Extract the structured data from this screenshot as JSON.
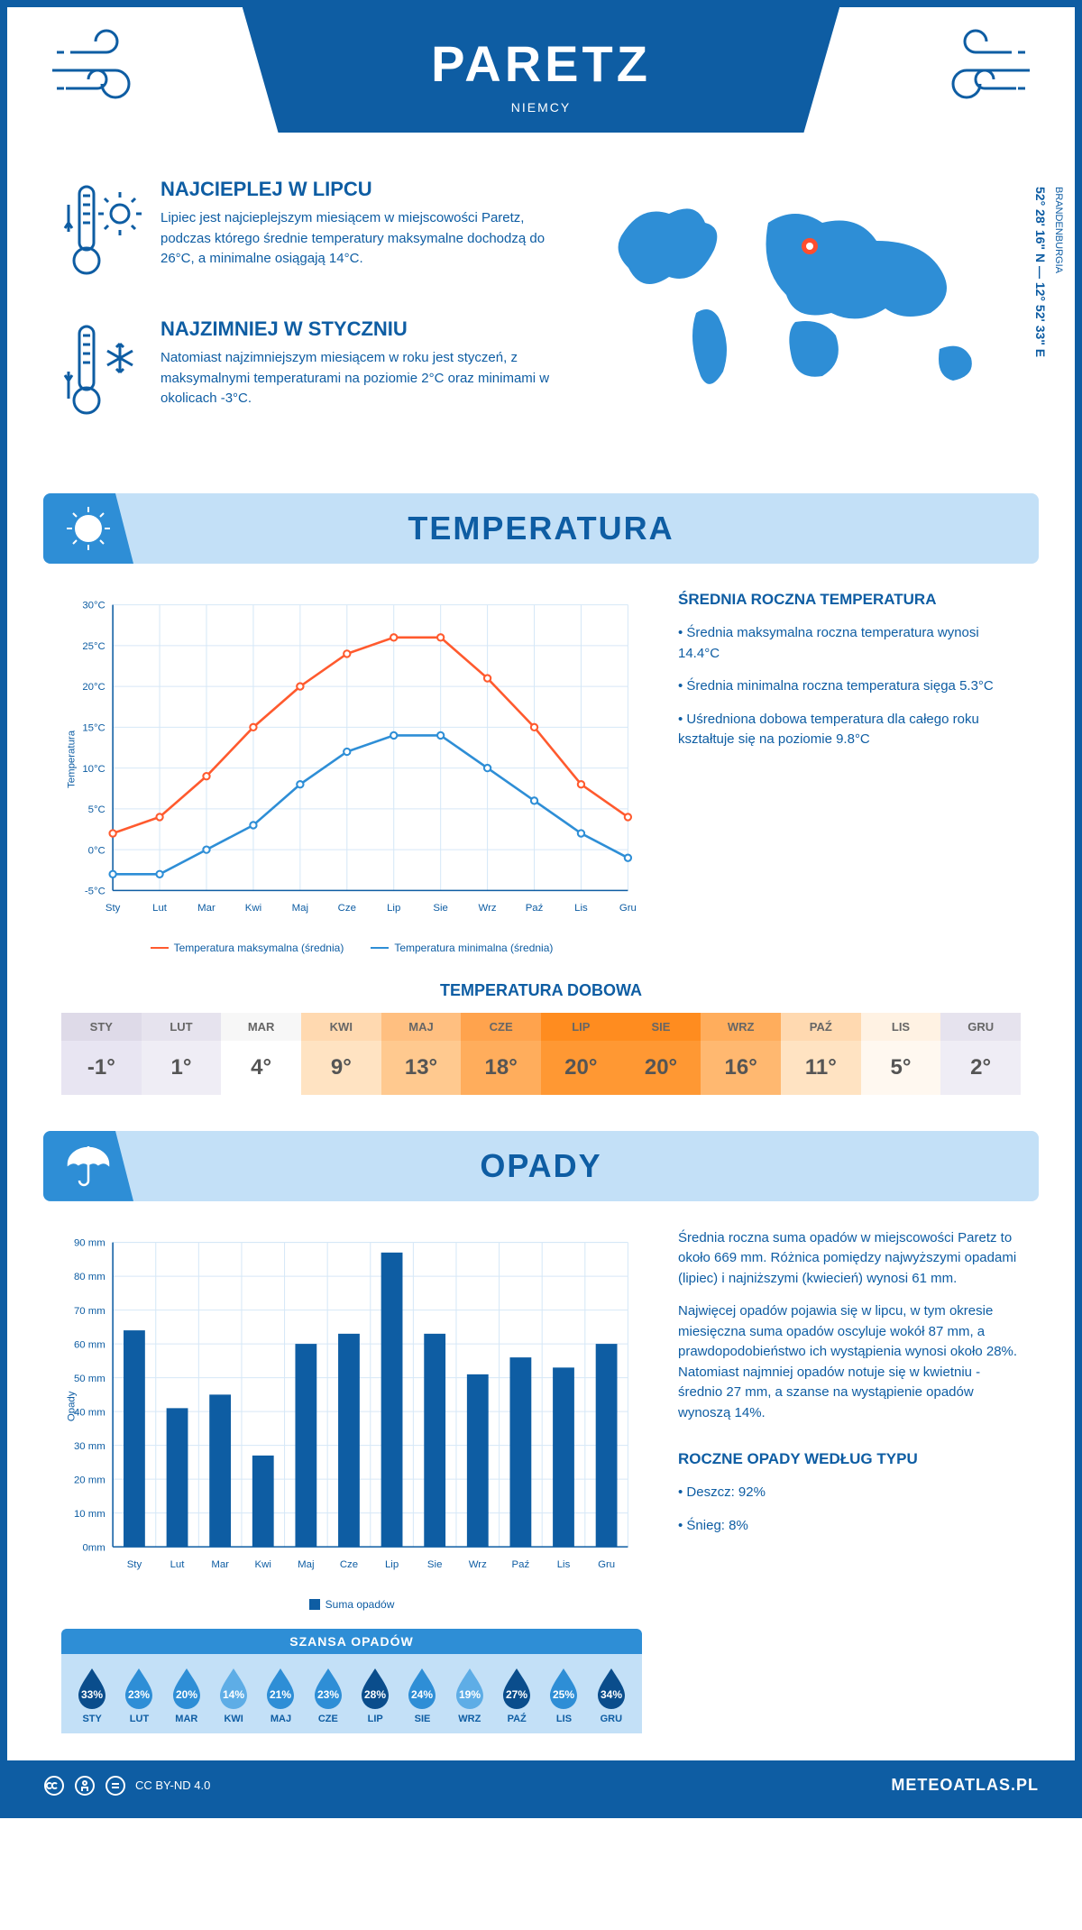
{
  "header": {
    "title": "PARETZ",
    "subtitle": "NIEMCY"
  },
  "map": {
    "coords": "52° 28' 16\" N — 12° 52' 33\" E",
    "region": "BRANDENBURGIA",
    "marker_color": "#ff4d2e",
    "land_color": "#2e8ed6",
    "marker_x": 246,
    "marker_y": 76
  },
  "warmest": {
    "title": "NAJCIEPLEJ W LIPCU",
    "body": "Lipiec jest najcieplejszym miesiącem w miejscowości Paretz, podczas którego średnie temperatury maksymalne dochodzą do 26°C, a minimalne osiągają 14°C."
  },
  "coldest": {
    "title": "NAJZIMNIEJ W STYCZNIU",
    "body": "Natomiast najzimniejszym miesiącem w roku jest styczeń, z maksymalnymi temperaturami na poziomie 2°C oraz minimami w okolicach -3°C."
  },
  "temperature": {
    "section_title": "TEMPERATURA",
    "y_label": "Temperatura",
    "months": [
      "Sty",
      "Lut",
      "Mar",
      "Kwi",
      "Maj",
      "Cze",
      "Lip",
      "Sie",
      "Wrz",
      "Paź",
      "Lis",
      "Gru"
    ],
    "max_series": {
      "label": "Temperatura maksymalna (średnia)",
      "color": "#ff5a2e",
      "values": [
        2,
        4,
        9,
        15,
        20,
        24,
        26,
        26,
        21,
        15,
        8,
        4
      ]
    },
    "min_series": {
      "label": "Temperatura minimalna (średnia)",
      "color": "#2e8ed6",
      "values": [
        -3,
        -3,
        0,
        3,
        8,
        12,
        14,
        14,
        10,
        6,
        2,
        -1
      ]
    },
    "y_ticks": [
      "-5°C",
      "0°C",
      "5°C",
      "10°C",
      "15°C",
      "20°C",
      "25°C",
      "30°C"
    ],
    "y_min": -5,
    "y_max": 30,
    "grid_color": "#d6e8f7",
    "axis_color": "#0e5da3",
    "annual": {
      "title": "ŚREDNIA ROCZNA TEMPERATURA",
      "bullets": [
        "• Średnia maksymalna roczna temperatura wynosi 14.4°C",
        "• Średnia minimalna roczna temperatura sięga 5.3°C",
        "• Uśredniona dobowa temperatura dla całego roku kształtuje się na poziomie 9.8°C"
      ]
    }
  },
  "daily": {
    "title": "TEMPERATURA DOBOWA",
    "months": [
      "STY",
      "LUT",
      "MAR",
      "KWI",
      "MAJ",
      "CZE",
      "LIP",
      "SIE",
      "WRZ",
      "PAŹ",
      "LIS",
      "GRU"
    ],
    "values": [
      "-1°",
      "1°",
      "4°",
      "9°",
      "13°",
      "18°",
      "20°",
      "20°",
      "16°",
      "11°",
      "5°",
      "2°"
    ],
    "cell_colors": [
      "#e8e5f2",
      "#efedf5",
      "#ffffff",
      "#ffe3c2",
      "#ffc98f",
      "#ffad5c",
      "#ff9833",
      "#ff9833",
      "#ffb870",
      "#ffe3c2",
      "#fff8f0",
      "#efedf5"
    ],
    "header_colors": [
      "#dedae8",
      "#e6e3ee",
      "#f7f7f7",
      "#ffd9b0",
      "#ffbf80",
      "#ffa34d",
      "#ff8c1f",
      "#ff8c1f",
      "#ffad5c",
      "#ffd9b0",
      "#fff2e3",
      "#e6e3ee"
    ]
  },
  "rain": {
    "section_title": "OPADY",
    "y_label": "Opady",
    "months": [
      "Sty",
      "Lut",
      "Mar",
      "Kwi",
      "Maj",
      "Cze",
      "Lip",
      "Sie",
      "Wrz",
      "Paź",
      "Lis",
      "Gru"
    ],
    "values": [
      64,
      41,
      45,
      27,
      60,
      63,
      87,
      63,
      51,
      56,
      53,
      60
    ],
    "y_ticks": [
      "0mm",
      "10 mm",
      "20 mm",
      "30 mm",
      "40 mm",
      "50 mm",
      "60 mm",
      "70 mm",
      "80 mm",
      "90 mm"
    ],
    "y_min": 0,
    "y_max": 90,
    "bar_color": "#0e5da3",
    "grid_color": "#d6e8f7",
    "legend_label": "Suma opadów",
    "text1": "Średnia roczna suma opadów w miejscowości Paretz to około 669 mm. Różnica pomiędzy najwyższymi opadami (lipiec) i najniższymi (kwiecień) wynosi 61 mm.",
    "text2": "Najwięcej opadów pojawia się w lipcu, w tym okresie miesięczna suma opadów oscyluje wokół 87 mm, a prawdopodobieństwo ich wystąpienia wynosi około 28%. Natomiast najmniej opadów notuje się w kwietniu - średnio 27 mm, a szanse na wystąpienie opadów wynoszą 14%.",
    "chance": {
      "title": "SZANSA OPADÓW",
      "months": [
        "STY",
        "LUT",
        "MAR",
        "KWI",
        "MAJ",
        "CZE",
        "LIP",
        "SIE",
        "WRZ",
        "PAŹ",
        "LIS",
        "GRU"
      ],
      "values": [
        "33%",
        "23%",
        "20%",
        "14%",
        "21%",
        "23%",
        "28%",
        "24%",
        "19%",
        "27%",
        "25%",
        "34%"
      ],
      "drop_colors": [
        "#0a4d8c",
        "#2e8ed6",
        "#2e8ed6",
        "#5eade6",
        "#2e8ed6",
        "#2e8ed6",
        "#0a4d8c",
        "#2e8ed6",
        "#5eade6",
        "#0a4d8c",
        "#2e8ed6",
        "#0a4d8c"
      ]
    },
    "by_type": {
      "title": "ROCZNE OPADY WEDŁUG TYPU",
      "bullets": [
        "• Deszcz: 92%",
        "• Śnieg: 8%"
      ]
    }
  },
  "footer": {
    "license": "CC BY-ND 4.0",
    "site": "METEOATLAS.PL"
  }
}
